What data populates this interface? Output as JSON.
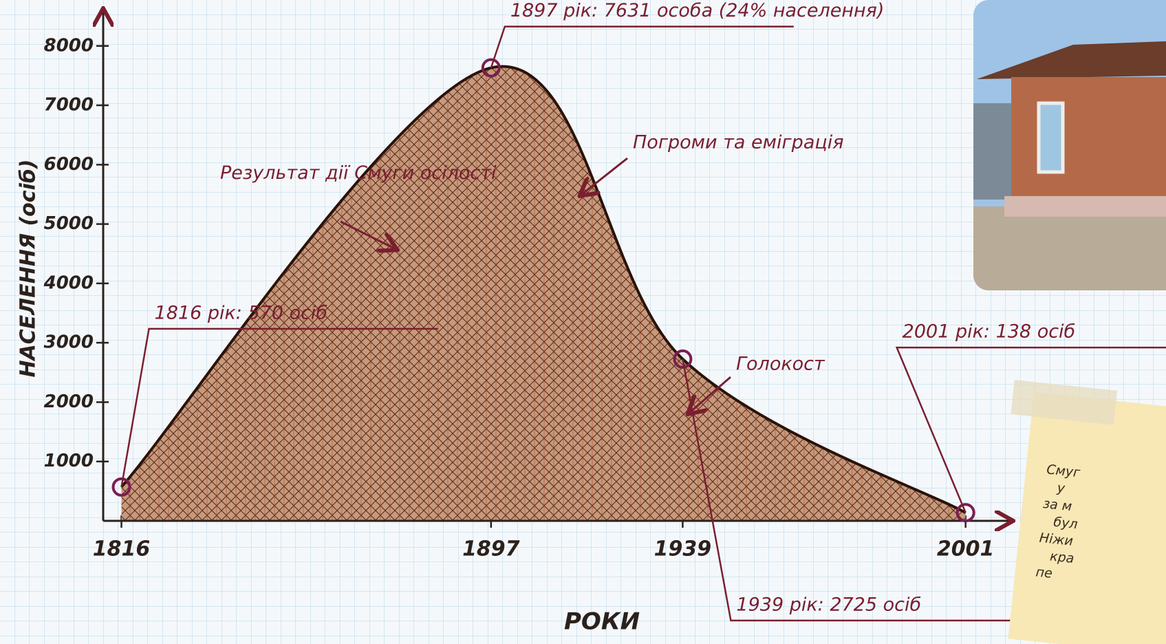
{
  "chart_data": {
    "type": "area",
    "x_label": "РОКИ",
    "y_label": "НАСЕЛЕННЯ (осіб)",
    "x": [
      1816,
      1897,
      1939,
      2001
    ],
    "values": [
      570,
      7631,
      2725,
      138
    ],
    "value_labels": [
      "1816 рік: 570 осіб",
      "1897 рік: 7631 особа (24% населення)",
      "1939 рік: 2725 осіб",
      "2001 рік: 138 осіб"
    ],
    "color": "#a0502a",
    "xlim": [
      1812,
      2011
    ],
    "xticks": [
      1816,
      1897,
      1939,
      2001
    ],
    "ylim": [
      0,
      8600
    ],
    "yticks": [
      1000,
      2000,
      3000,
      4000,
      5000,
      6000,
      7000,
      8000
    ],
    "annotations": [
      "Результат дії Смуги осілості",
      "Погроми та еміграція",
      "Голокост"
    ]
  },
  "note": {
    "lines": [
      "Смуг",
      "у",
      "за м",
      "бул",
      "Ніжи",
      "кра",
      "пе"
    ]
  }
}
